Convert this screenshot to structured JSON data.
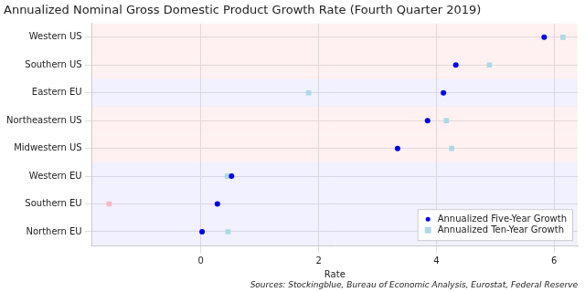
{
  "chart_data": {
    "type": "dot",
    "title": "Annualized Nominal Gross Domestic Product Growth Rate (Fourth Quarter 2019)",
    "x_label": "Rate",
    "source": "Sources: Stockingblue, Bureau of Economic Analysis, Eurostat, Federal Reserve",
    "orientation": "horizontal",
    "categories": [
      "Western US",
      "Southern US",
      "Eastern EU",
      "Northeastern US",
      "Midwestern US",
      "Western EU",
      "Southern EU",
      "Northern EU"
    ],
    "series": [
      {
        "name": "Annualized Five-Year Growth",
        "color": "#0000ee",
        "marker": "circle",
        "values": [
          5.83,
          4.33,
          4.12,
          3.85,
          3.34,
          0.52,
          0.28,
          0.02
        ]
      },
      {
        "name": "Annualized Ten-Year Growth",
        "marker": "square",
        "colors": [
          "#add8e6",
          "#add8e6",
          "#add8e6",
          "#add8e6",
          "#add8e6",
          "#add8e6",
          "#ffb6c1",
          "#add8e6"
        ],
        "values": [
          6.15,
          4.9,
          1.83,
          4.17,
          4.26,
          0.45,
          -1.56,
          0.46
        ]
      }
    ],
    "xlim": [
      -1.85,
      6.4
    ],
    "xticks": [
      0,
      2,
      4,
      6
    ],
    "grid": true,
    "legend": "lower right"
  }
}
